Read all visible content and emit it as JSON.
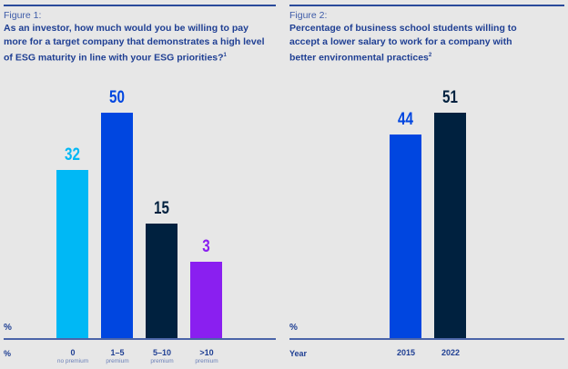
{
  "chart_data": [
    {
      "type": "bar",
      "figure_label": "Figure 1:",
      "title": "As an investor, how much would you be willing to pay more for a target company that demonstrates a high level of ESG maturity in line with your ESG priorities?",
      "footnote": "1",
      "ylabel": "%",
      "xlabel": "%",
      "ylim": [
        -21,
        60
      ],
      "grid": false,
      "categories": [
        {
          "label": "0",
          "sub": "no premium"
        },
        {
          "label": "1–5",
          "sub": "premium"
        },
        {
          "label": "5–10",
          "sub": "premium"
        },
        {
          "label": ">10",
          "sub": "premium"
        }
      ],
      "values": [
        32,
        50,
        15,
        3
      ],
      "colors": [
        "#00b8f5",
        "#0046e0",
        "#00213f",
        "#8a1ff0"
      ],
      "value_label_colors": [
        "#00b8f5",
        "#0046e0",
        "#00213f",
        "#8a1ff0"
      ]
    },
    {
      "type": "bar",
      "figure_label": "Figure 2:",
      "title": "Percentage of business school students willing to accept a lower salary to work for a company with better environmental practices",
      "footnote": "2",
      "ylabel": "%",
      "xlabel": "Year",
      "ylim": [
        -20,
        60
      ],
      "grid": false,
      "categories": [
        {
          "label": "2015"
        },
        {
          "label": "2022"
        }
      ],
      "values": [
        44,
        51
      ],
      "colors": [
        "#0046e0",
        "#00213f"
      ],
      "value_label_colors": [
        "#0046e0",
        "#00213f"
      ]
    }
  ]
}
